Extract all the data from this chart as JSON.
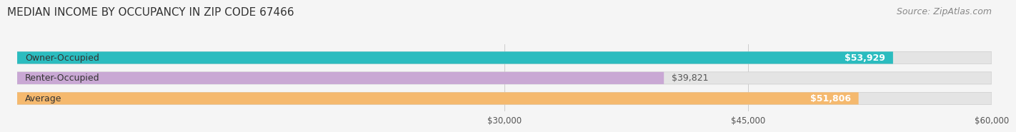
{
  "title": "MEDIAN INCOME BY OCCUPANCY IN ZIP CODE 67466",
  "source": "Source: ZipAtlas.com",
  "categories": [
    "Owner-Occupied",
    "Renter-Occupied",
    "Average"
  ],
  "values": [
    53929,
    39821,
    51806
  ],
  "bar_colors": [
    "#2bbcbf",
    "#c9a8d4",
    "#f5b96e"
  ],
  "value_labels": [
    "$53,929",
    "$39,821",
    "$51,806"
  ],
  "label_inside": [
    true,
    false,
    true
  ],
  "xlim": [
    0,
    60000
  ],
  "xticks": [
    30000,
    45000,
    60000
  ],
  "xtick_labels": [
    "$30,000",
    "$45,000",
    "$60,000"
  ],
  "background_color": "#f5f5f5",
  "bar_background_color": "#e4e4e4",
  "title_fontsize": 11,
  "source_fontsize": 9,
  "label_fontsize": 9,
  "tick_fontsize": 8.5,
  "category_fontsize": 9,
  "bar_height": 0.6,
  "bar_edge_color": "#cccccc"
}
